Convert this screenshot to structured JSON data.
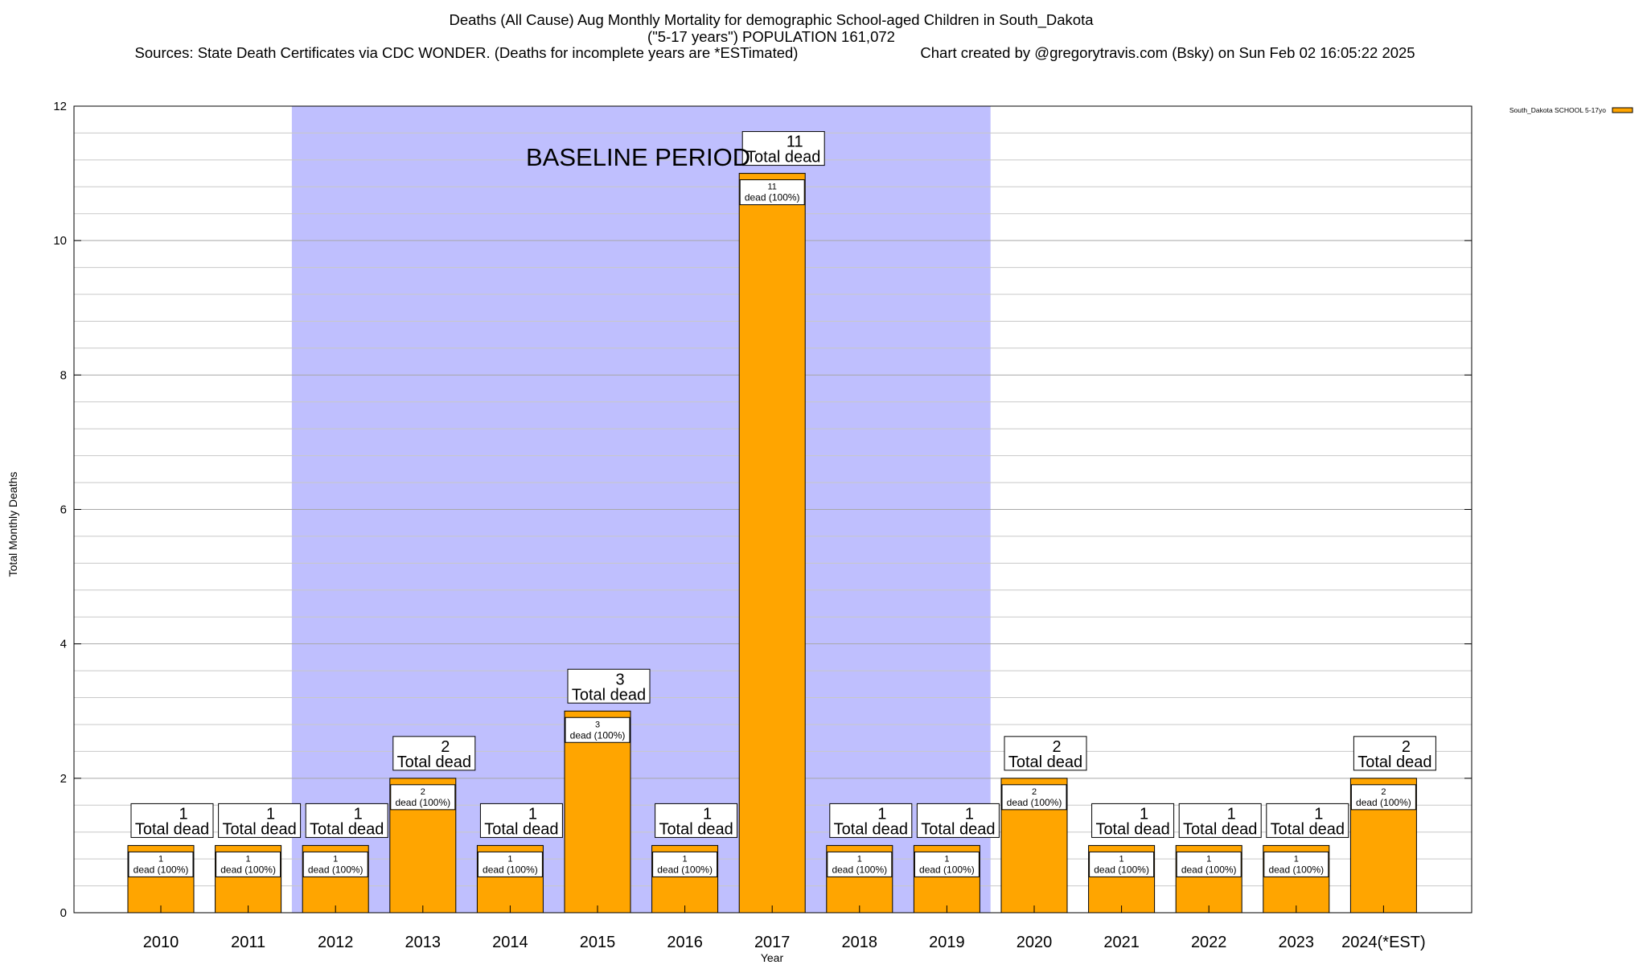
{
  "chart_data": {
    "type": "bar",
    "title_lines": [
      "Deaths (All Cause) Aug Monthly Mortality for demographic School-aged Children in South_Dakota",
      "(\"5-17 years\") POPULATION 161,072"
    ],
    "sources": "Sources: State Death Certificates via CDC WONDER. (Deaths for incomplete years are *ESTimated)",
    "credit": "Chart created by @gregorytravis.com (Bsky) on Sun Feb 02 16:05:22 2025",
    "xlabel": "Year",
    "ylabel": "Total Monthly Deaths",
    "ylim": [
      0,
      12
    ],
    "y_ticks": [
      0,
      2,
      4,
      6,
      8,
      10,
      12
    ],
    "y_minor_step": 0.4,
    "grid": true,
    "legend": {
      "position": "top-right",
      "entries": [
        {
          "name": "South_Dakota SCHOOL 5-17yo",
          "color": "#ffa500"
        }
      ]
    },
    "categories": [
      "2010",
      "2011",
      "2012",
      "2013",
      "2014",
      "2015",
      "2016",
      "2017",
      "2018",
      "2019",
      "2020",
      "2021",
      "2022",
      "2023",
      "2024(*EST)"
    ],
    "series": [
      {
        "name": "South_Dakota SCHOOL 5-17yo",
        "color": "#ffa500",
        "values": [
          1,
          1,
          1,
          2,
          1,
          3,
          1,
          11,
          1,
          1,
          2,
          1,
          1,
          1,
          2
        ]
      }
    ],
    "total_label_text": "Total dead",
    "segment_label_text": "dead (100%)",
    "baseline": {
      "label": "BASELINE PERIOD",
      "from": "2012",
      "to": "2019",
      "color": "#bfbffe"
    }
  }
}
